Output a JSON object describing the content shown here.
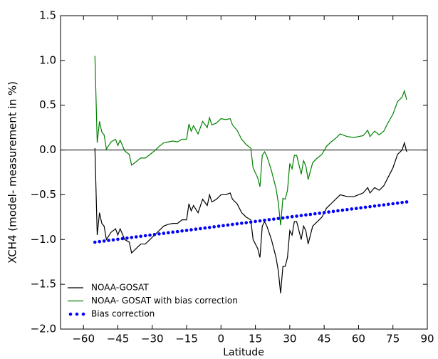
{
  "chart_data": {
    "type": "line",
    "xlabel": "Latitude",
    "ylabel": "XCH4 (model- measurement in %)",
    "xlim": [
      -70,
      90
    ],
    "xticks": [
      {
        "value": -60,
        "label": "−60"
      },
      {
        "value": -45,
        "label": "−45"
      },
      {
        "value": -30,
        "label": "−30"
      },
      {
        "value": -15,
        "label": "−15"
      },
      0,
      15,
      30,
      45,
      60,
      75,
      90
    ],
    "ylim": [
      -2.0,
      1.5
    ],
    "yticks": [
      {
        "value": -2.0,
        "label": "−2.0"
      },
      {
        "value": -1.5,
        "label": "−1.5"
      },
      {
        "value": -1.0,
        "label": "−1.0"
      },
      {
        "value": -0.5,
        "label": "−0.5"
      },
      {
        "value": 0.0,
        "label": "0.0"
      },
      0.5,
      {
        "value": 1.0,
        "label": "1.0"
      },
      1.5
    ],
    "hline": 0,
    "legend": "lower left",
    "series": [
      {
        "name": "NOAA-GOSAT",
        "color": "#000000",
        "style": "line",
        "x": [
          -55,
          -54,
          -53,
          -52,
          -51,
          -50,
          -48,
          -46,
          -45,
          -44,
          -42,
          -40,
          -39,
          -37,
          -35,
          -33,
          -31,
          -29,
          -27,
          -25,
          -23,
          -21,
          -19,
          -17,
          -15,
          -14,
          -13,
          -12,
          -10,
          -8,
          -6,
          -5,
          -4,
          -2,
          0,
          2,
          4,
          5,
          7,
          9,
          11,
          13,
          14,
          16,
          17,
          18,
          19,
          20,
          22,
          23,
          24,
          25,
          26,
          27,
          28,
          29,
          30,
          31,
          32,
          33,
          35,
          36,
          37,
          38,
          40,
          42,
          44,
          46,
          48,
          50,
          52,
          55,
          58,
          60,
          62,
          64,
          65,
          67,
          69,
          71,
          73,
          75,
          77,
          79,
          80,
          81
        ],
        "values": [
          0.02,
          -0.95,
          -0.7,
          -0.82,
          -0.85,
          -1.0,
          -0.92,
          -0.88,
          -0.95,
          -0.88,
          -1.0,
          -1.03,
          -1.15,
          -1.1,
          -1.05,
          -1.05,
          -1.0,
          -0.95,
          -0.9,
          -0.85,
          -0.83,
          -0.82,
          -0.82,
          -0.78,
          -0.78,
          -0.6,
          -0.68,
          -0.62,
          -0.7,
          -0.55,
          -0.62,
          -0.5,
          -0.58,
          -0.55,
          -0.5,
          -0.5,
          -0.48,
          -0.55,
          -0.6,
          -0.7,
          -0.75,
          -0.78,
          -1.0,
          -1.1,
          -1.2,
          -0.85,
          -0.8,
          -0.85,
          -1.0,
          -1.1,
          -1.2,
          -1.35,
          -1.6,
          -1.3,
          -1.3,
          -1.2,
          -0.9,
          -0.95,
          -0.8,
          -0.8,
          -1.0,
          -0.85,
          -0.9,
          -1.05,
          -0.85,
          -0.8,
          -0.75,
          -0.65,
          -0.6,
          -0.55,
          -0.5,
          -0.52,
          -0.52,
          -0.5,
          -0.48,
          -0.42,
          -0.48,
          -0.42,
          -0.45,
          -0.4,
          -0.3,
          -0.2,
          -0.05,
          0.0,
          0.08,
          -0.02
        ]
      },
      {
        "name": "NOAA- GOSAT with bias correction",
        "color": "#008000",
        "style": "line",
        "x": [
          -55,
          -54,
          -53,
          -52,
          -51,
          -50,
          -48,
          -46,
          -45,
          -44,
          -42,
          -40,
          -39,
          -37,
          -35,
          -33,
          -31,
          -29,
          -27,
          -25,
          -23,
          -21,
          -19,
          -17,
          -15,
          -14,
          -13,
          -12,
          -10,
          -8,
          -6,
          -5,
          -4,
          -2,
          0,
          2,
          4,
          5,
          7,
          9,
          11,
          13,
          14,
          16,
          17,
          18,
          19,
          20,
          22,
          23,
          24,
          25,
          26,
          27,
          28,
          29,
          30,
          31,
          32,
          33,
          35,
          36,
          37,
          38,
          40,
          42,
          44,
          46,
          48,
          50,
          52,
          55,
          58,
          60,
          62,
          64,
          65,
          67,
          69,
          71,
          73,
          75,
          77,
          79,
          80,
          81
        ],
        "values": [
          1.05,
          0.08,
          0.32,
          0.2,
          0.17,
          0.01,
          0.09,
          0.12,
          0.05,
          0.11,
          -0.01,
          -0.05,
          -0.17,
          -0.13,
          -0.09,
          -0.09,
          -0.05,
          -0.01,
          0.04,
          0.08,
          0.09,
          0.1,
          0.09,
          0.12,
          0.12,
          0.29,
          0.21,
          0.27,
          0.18,
          0.32,
          0.25,
          0.36,
          0.28,
          0.3,
          0.35,
          0.34,
          0.35,
          0.28,
          0.22,
          0.12,
          0.06,
          0.02,
          -0.2,
          -0.31,
          -0.41,
          -0.06,
          -0.02,
          -0.07,
          -0.23,
          -0.33,
          -0.43,
          -0.59,
          -0.84,
          -0.54,
          -0.55,
          -0.45,
          -0.15,
          -0.21,
          -0.06,
          -0.06,
          -0.27,
          -0.12,
          -0.18,
          -0.33,
          -0.14,
          -0.09,
          -0.05,
          0.04,
          0.09,
          0.13,
          0.18,
          0.15,
          0.14,
          0.15,
          0.16,
          0.22,
          0.15,
          0.21,
          0.17,
          0.21,
          0.31,
          0.4,
          0.54,
          0.59,
          0.66,
          0.56
        ]
      },
      {
        "name": "Bias correction",
        "color": "#0000ff",
        "style": "dots",
        "x": [
          -55,
          -53,
          -51,
          -49,
          -47,
          -45,
          -43,
          -41,
          -39,
          -37,
          -35,
          -33,
          -31,
          -29,
          -27,
          -25,
          -23,
          -21,
          -19,
          -17,
          -15,
          -13,
          -11,
          -9,
          -7,
          -5,
          -3,
          -1,
          1,
          3,
          5,
          7,
          9,
          11,
          13,
          15,
          17,
          19,
          21,
          23,
          25,
          27,
          29,
          31,
          33,
          35,
          37,
          39,
          41,
          43,
          45,
          47,
          49,
          51,
          53,
          55,
          57,
          59,
          61,
          63,
          65,
          67,
          69,
          71,
          73,
          75,
          77,
          79,
          81
        ],
        "values": [
          -1.03,
          -1.023,
          -1.017,
          -1.01,
          -1.004,
          -0.997,
          -0.99,
          -0.984,
          -0.977,
          -0.97,
          -0.964,
          -0.957,
          -0.951,
          -0.944,
          -0.937,
          -0.931,
          -0.924,
          -0.917,
          -0.911,
          -0.904,
          -0.898,
          -0.891,
          -0.884,
          -0.878,
          -0.871,
          -0.865,
          -0.858,
          -0.851,
          -0.845,
          -0.838,
          -0.831,
          -0.825,
          -0.818,
          -0.812,
          -0.805,
          -0.798,
          -0.792,
          -0.785,
          -0.778,
          -0.772,
          -0.765,
          -0.759,
          -0.752,
          -0.745,
          -0.739,
          -0.732,
          -0.725,
          -0.719,
          -0.712,
          -0.706,
          -0.699,
          -0.692,
          -0.686,
          -0.679,
          -0.672,
          -0.666,
          -0.659,
          -0.653,
          -0.646,
          -0.639,
          -0.633,
          -0.626,
          -0.619,
          -0.613,
          -0.606,
          -0.6,
          -0.593,
          -0.586,
          -0.58
        ]
      }
    ]
  }
}
